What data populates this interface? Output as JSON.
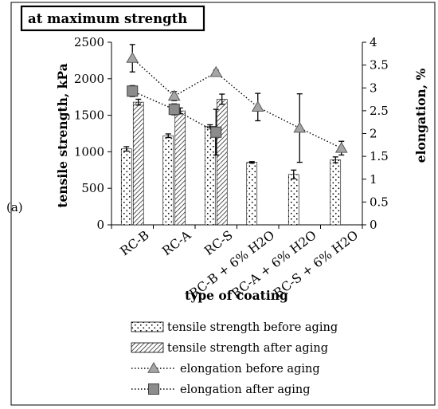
{
  "panel_label": "(a)",
  "chart_data": {
    "type": "bar",
    "title": "at maximum strength",
    "xlabel": "type of coating",
    "ylabel": "tensile strength, kPa",
    "y2label": "elongation, %",
    "categories": [
      "RC-B",
      "RC-A",
      "RC-S",
      "RC-B + 6% H2O",
      "RC-A + 6% H2O",
      "RC-S + 6% H2O"
    ],
    "ylim": [
      0,
      2500
    ],
    "yticks": [
      "0",
      "500",
      "1000",
      "1500",
      "2000",
      "2500"
    ],
    "y2lim": [
      0,
      4
    ],
    "y2ticks": [
      "0",
      "0.5",
      "1",
      "1.5",
      "2",
      "2.5",
      "3",
      "3.5",
      "4"
    ],
    "grid": false,
    "legend_position": "bottom",
    "bar_series": [
      {
        "name": "tensile strength before aging",
        "pattern": "dots",
        "values": [
          1040,
          1220,
          1350,
          855,
          690,
          890
        ],
        "errors": [
          30,
          25,
          20,
          10,
          60,
          40
        ]
      },
      {
        "name": "tensile strength after aging",
        "pattern": "hatch",
        "values": [
          1680,
          1560,
          1720,
          null,
          null,
          null
        ],
        "errors": [
          40,
          40,
          70,
          null,
          null,
          null
        ]
      }
    ],
    "line_series": [
      {
        "name": "elongation before aging",
        "axis": "right",
        "marker": "triangle",
        "color": "#8c8c8c",
        "values": [
          3.65,
          2.82,
          3.34,
          2.58,
          2.12,
          1.68
        ],
        "errors": [
          0.3,
          0.1,
          0.05,
          0.3,
          0.75,
          0.15
        ]
      },
      {
        "name": "elongation after aging",
        "axis": "right",
        "marker": "square",
        "color": "#8c8c8c",
        "values": [
          2.93,
          2.53,
          2.03,
          null,
          null,
          null
        ],
        "errors": [
          0.12,
          0.12,
          0.5,
          null,
          null,
          null
        ]
      }
    ]
  }
}
